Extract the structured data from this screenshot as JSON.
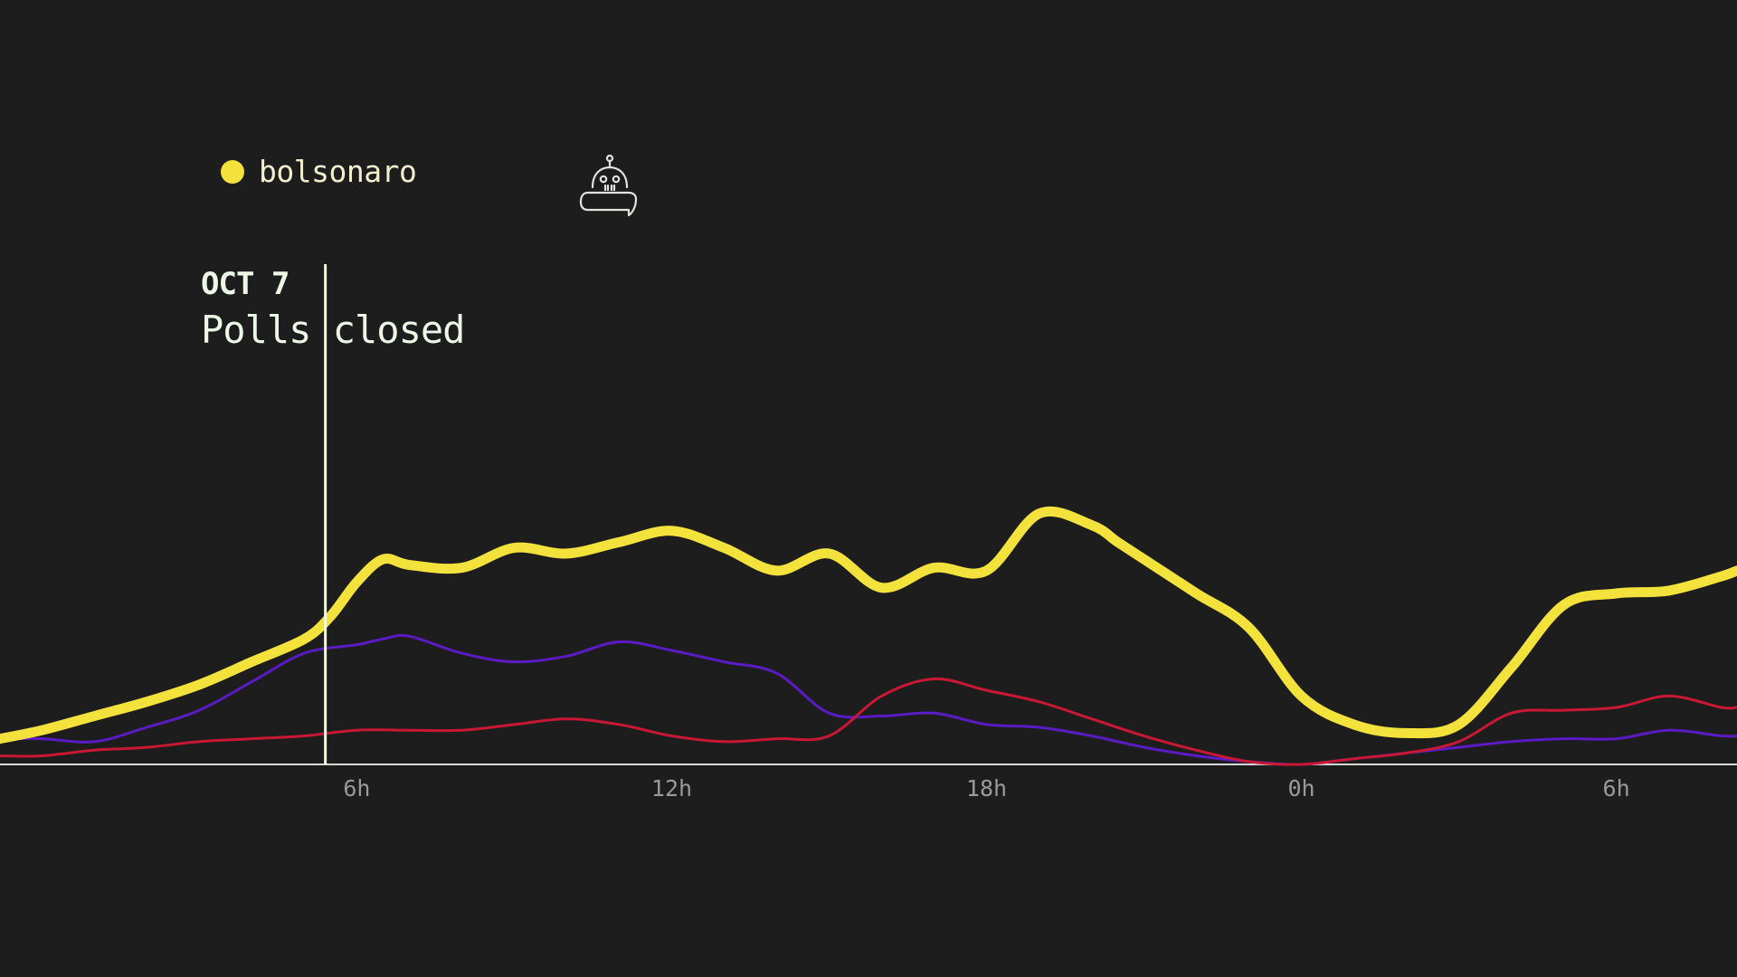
{
  "legend": {
    "label": "bolsonaro",
    "color": "#f4e23c"
  },
  "annotation": {
    "date": "OCT 7",
    "text": "Polls closed",
    "x_hours": 5.4
  },
  "colors": {
    "background": "#1e1d1e",
    "axis": "#d8d8d8",
    "marker_line": "#f4f8e0"
  },
  "icons": {
    "top": "robot-icon"
  },
  "chart_data": {
    "type": "line",
    "xlim": [
      -0.8,
      32.3
    ],
    "ylim": [
      0,
      50
    ],
    "ticks": [
      {
        "x": 6,
        "label": "6h"
      },
      {
        "x": 12,
        "label": "12h"
      },
      {
        "x": 18,
        "label": "18h"
      },
      {
        "x": 24,
        "label": "0h"
      },
      {
        "x": 30,
        "label": "6h"
      }
    ],
    "series": [
      {
        "name": "bolsonaro",
        "color": "#f4e23c",
        "width": 11,
        "x": [
          -0.8,
          0,
          1,
          2,
          3,
          4,
          5,
          5.5,
          6,
          6.5,
          7,
          8,
          9,
          10,
          11,
          12,
          13,
          14,
          15,
          16,
          17,
          18,
          19,
          20,
          20.5,
          21,
          22,
          23,
          24,
          25,
          26,
          27,
          28,
          29,
          30,
          31,
          32,
          32.3
        ],
        "values": [
          4.5,
          6,
          8.5,
          11,
          14,
          18,
          22,
          26,
          32,
          36,
          35,
          34.5,
          38,
          37,
          39,
          41,
          38,
          34,
          37,
          31,
          34.5,
          34,
          44,
          42,
          39,
          36,
          30,
          24,
          12,
          7,
          5.5,
          7,
          17,
          28,
          30,
          30.5,
          33,
          34
        ]
      },
      {
        "name": "",
        "color": "#5b1bc4",
        "width": 3,
        "x": [
          -0.8,
          0,
          1,
          2,
          3,
          4,
          5,
          6,
          6.5,
          7,
          8,
          9,
          10,
          11,
          12,
          13,
          14,
          15,
          16,
          17,
          18,
          19,
          20,
          21,
          22,
          23,
          24,
          25,
          26,
          27,
          28,
          29,
          30,
          31,
          32,
          32.3
        ],
        "values": [
          4.5,
          4.5,
          4,
          6.5,
          9.5,
          14.5,
          19.5,
          21,
          22,
          22.5,
          19.5,
          18,
          19,
          21.5,
          20,
          18,
          16,
          9,
          8.5,
          9,
          7,
          6.5,
          5,
          3,
          1.5,
          0.5,
          0,
          1,
          2,
          3,
          4,
          4.5,
          4.5,
          6,
          5,
          5
        ]
      },
      {
        "name": "",
        "color": "#c91834",
        "width": 3,
        "x": [
          -0.8,
          0,
          1,
          2,
          3,
          4,
          5,
          6,
          7,
          8,
          9,
          10,
          11,
          12,
          13,
          14,
          15,
          16,
          17,
          18,
          19,
          20,
          21,
          22,
          23,
          24,
          25,
          26,
          27,
          28,
          29,
          30,
          31,
          32,
          32.3
        ],
        "values": [
          1.5,
          1.5,
          2.5,
          3,
          4,
          4.5,
          5,
          6,
          6,
          6,
          7,
          8,
          7,
          5,
          4,
          4.5,
          5,
          12,
          15,
          13,
          11,
          8,
          5,
          2.5,
          0.5,
          0,
          1,
          2,
          4,
          9,
          9.5,
          10,
          12,
          10,
          10
        ]
      }
    ]
  }
}
